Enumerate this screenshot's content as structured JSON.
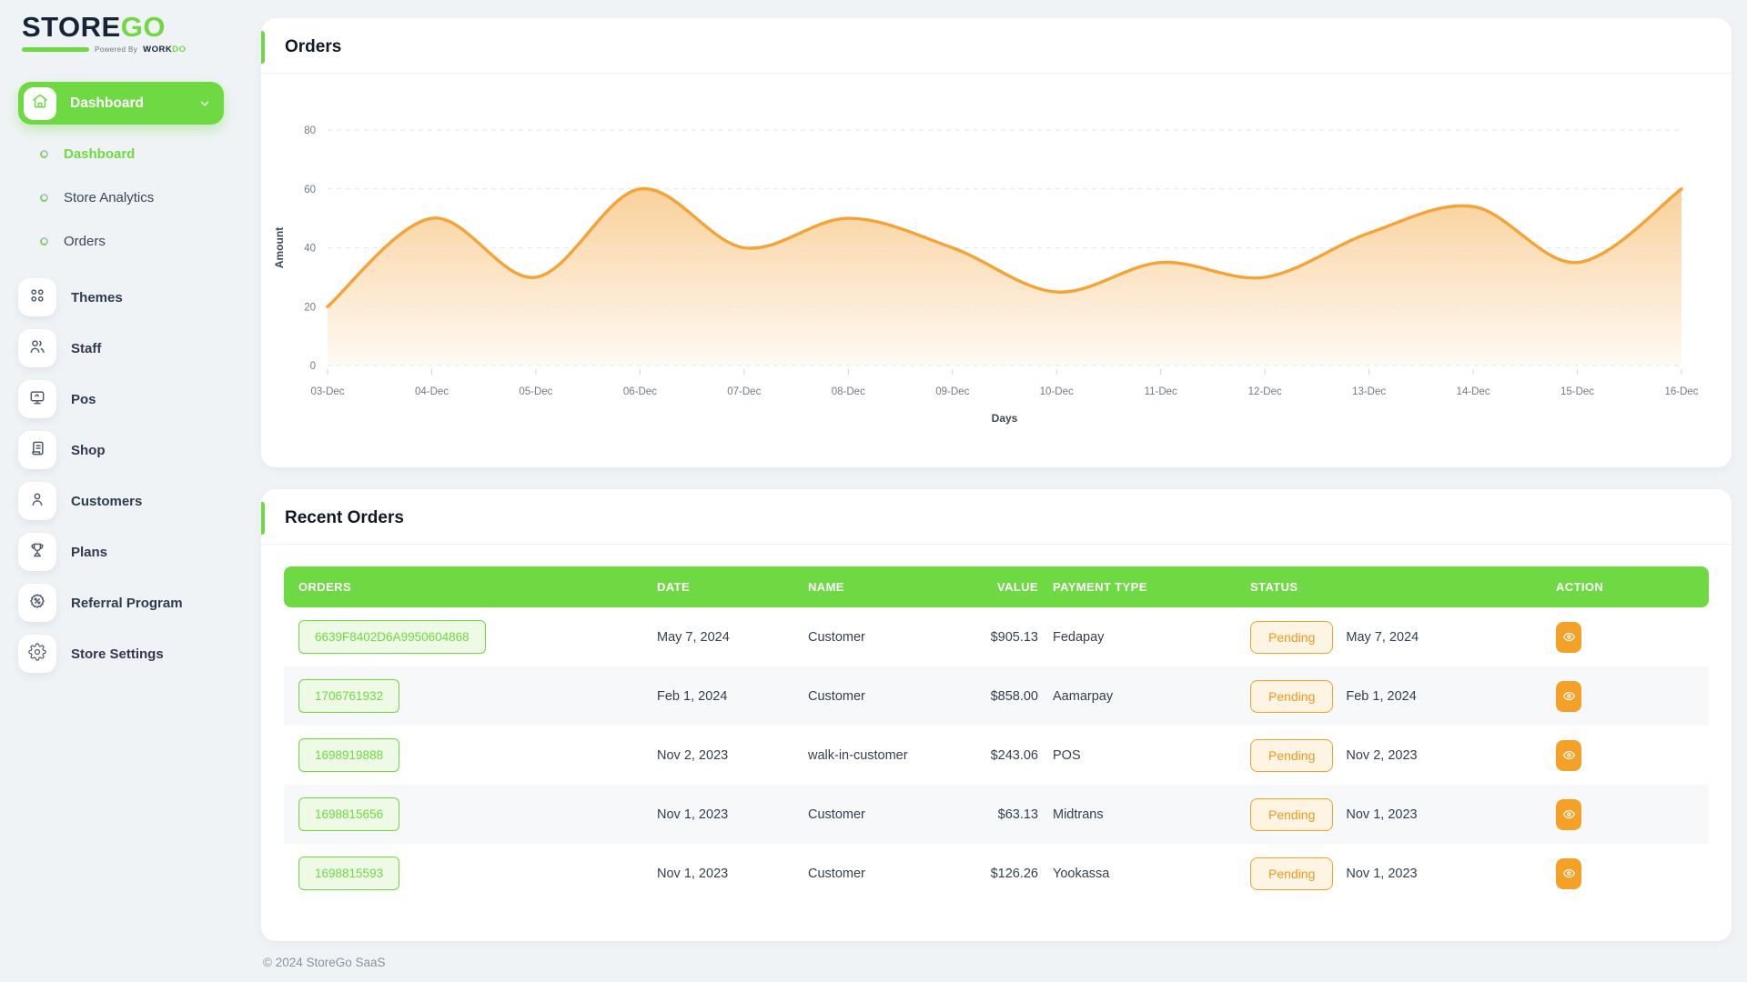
{
  "app": {
    "logo_primary": "STORE",
    "logo_secondary": "GO",
    "powered_by": "Powered By",
    "powered_brand_primary": "WORK",
    "powered_brand_secondary": "DO",
    "footer": "© 2024 StoreGo SaaS"
  },
  "sidebar": {
    "active_group": {
      "label": "Dashboard",
      "icon": "home-icon"
    },
    "submenu": [
      {
        "label": "Dashboard",
        "active": true
      },
      {
        "label": "Store Analytics",
        "active": false
      },
      {
        "label": "Orders",
        "active": false
      }
    ],
    "items": [
      {
        "label": "Themes",
        "icon": "grid-icon",
        "chevron": false
      },
      {
        "label": "Staff",
        "icon": "staff-icon",
        "chevron": true
      },
      {
        "label": "Pos",
        "icon": "pos-icon",
        "chevron": false
      },
      {
        "label": "Shop",
        "icon": "shop-icon",
        "chevron": true
      },
      {
        "label": "Customers",
        "icon": "customer-icon",
        "chevron": false
      },
      {
        "label": "Plans",
        "icon": "plans-icon",
        "chevron": false
      },
      {
        "label": "Referral Program",
        "icon": "referral-icon",
        "chevron": false
      },
      {
        "label": "Store Settings",
        "icon": "settings-icon",
        "chevron": false
      }
    ]
  },
  "orders_card": {
    "title": "Orders"
  },
  "chart_data": {
    "type": "area",
    "title": "Orders",
    "x": [
      "03-Dec",
      "04-Dec",
      "05-Dec",
      "06-Dec",
      "07-Dec",
      "08-Dec",
      "09-Dec",
      "10-Dec",
      "11-Dec",
      "12-Dec",
      "13-Dec",
      "14-Dec",
      "15-Dec",
      "16-Dec"
    ],
    "values": [
      20,
      50,
      30,
      60,
      40,
      50,
      40,
      25,
      35,
      30,
      45,
      54,
      35,
      60
    ],
    "xlabel": "Days",
    "ylabel": "Amount",
    "ylim": [
      0,
      80
    ],
    "yticks": [
      0,
      20,
      40,
      60,
      80
    ],
    "line_color": "#f5a337",
    "grid": "dashed-horizontal",
    "legend": "none"
  },
  "recent_orders": {
    "title": "Recent Orders",
    "columns": [
      "ORDERS",
      "DATE",
      "NAME",
      "VALUE",
      "PAYMENT TYPE",
      "STATUS",
      "ACTION"
    ],
    "rows": [
      {
        "order_id": "6639F8402D6A9950604868",
        "date": "May 7, 2024",
        "name": "Customer",
        "value": "$905.13",
        "payment": "Fedapay",
        "status": "Pending",
        "status_date": "May 7, 2024"
      },
      {
        "order_id": "1706761932",
        "date": "Feb 1, 2024",
        "name": "Customer",
        "value": "$858.00",
        "payment": "Aamarpay",
        "status": "Pending",
        "status_date": "Feb 1, 2024"
      },
      {
        "order_id": "1698919888",
        "date": "Nov 2, 2023",
        "name": "walk-in-customer",
        "value": "$243.06",
        "payment": "POS",
        "status": "Pending",
        "status_date": "Nov 2, 2023"
      },
      {
        "order_id": "1698815656",
        "date": "Nov 1, 2023",
        "name": "Customer",
        "value": "$63.13",
        "payment": "Midtrans",
        "status": "Pending",
        "status_date": "Nov 1, 2023"
      },
      {
        "order_id": "1698815593",
        "date": "Nov 1, 2023",
        "name": "Customer",
        "value": "$126.26",
        "payment": "Yookassa",
        "status": "Pending",
        "status_date": "Nov 1, 2023"
      }
    ]
  },
  "colors": {
    "green": "#6fd943",
    "orange": "#f5a127",
    "dark": "#152536"
  }
}
